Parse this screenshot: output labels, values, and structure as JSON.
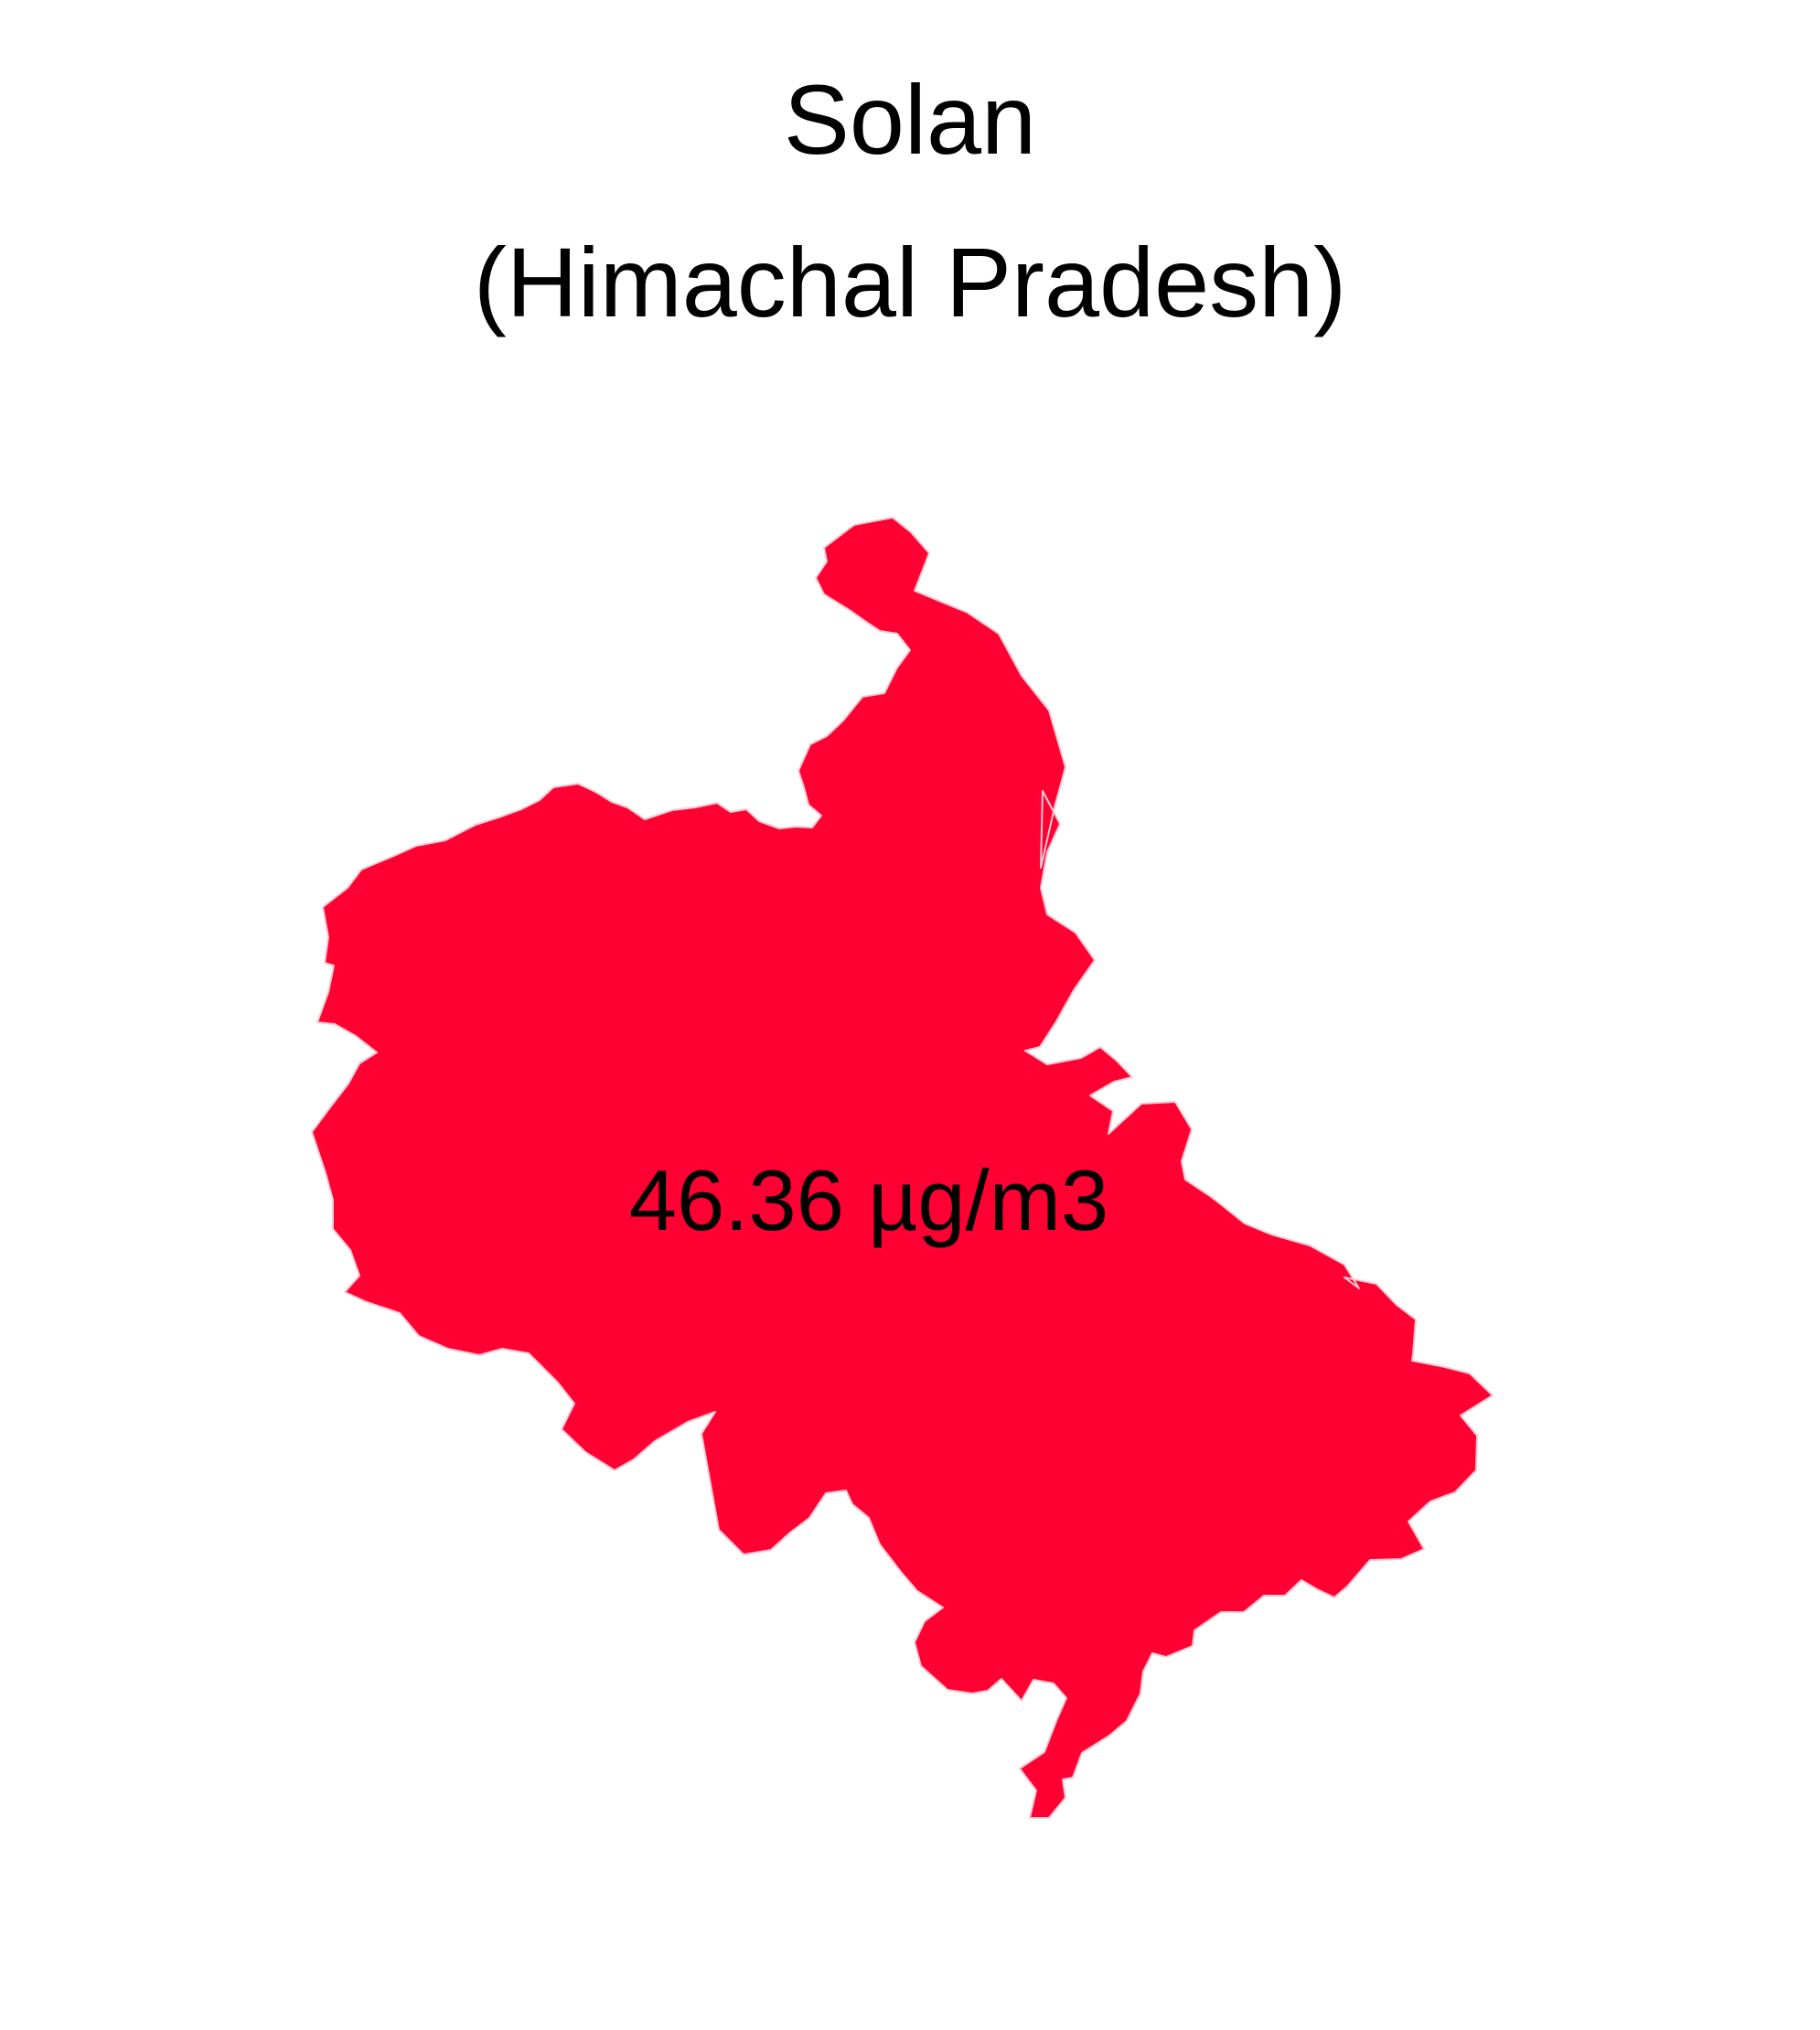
{
  "map": {
    "title_line1": "Solan",
    "title_line2": "(Himachal Pradesh)",
    "district_name": "Solan",
    "state_name": "Himachal Pradesh",
    "value_label": "46.36 µg/m3",
    "value": 46.36,
    "unit": "µg/m3",
    "fill_color": "#ff0033",
    "background_color": "#ffffff",
    "text_color": "#000000"
  }
}
